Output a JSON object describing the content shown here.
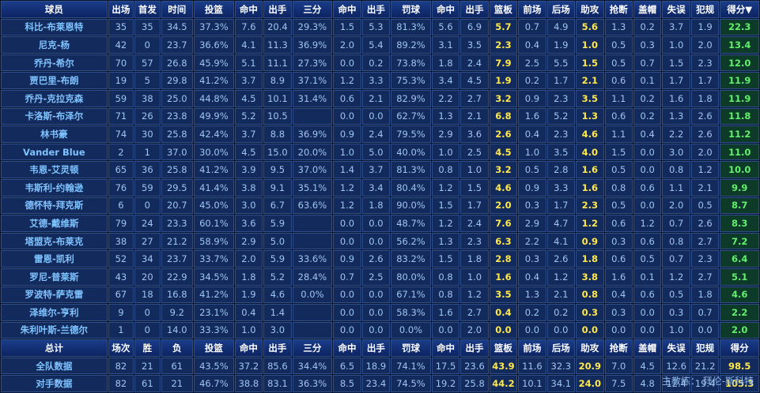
{
  "header": [
    "球员",
    "出场",
    "首发",
    "时间",
    "投篮",
    "命中",
    "出手",
    "三分",
    "命中",
    "出手",
    "罚球",
    "命中",
    "出手",
    "篮板",
    "前场",
    "后场",
    "助攻",
    "抢断",
    "盖帽",
    "失误",
    "犯规",
    "得分▼"
  ],
  "players": [
    [
      "科比-布莱恩特",
      "35",
      "35",
      "34.5",
      "37.3%",
      "7.6",
      "20.4",
      "29.3%",
      "1.5",
      "5.3",
      "81.3%",
      "5.6",
      "6.9",
      "5.7",
      "0.7",
      "4.9",
      "5.6",
      "1.3",
      "0.2",
      "3.7",
      "1.9",
      "22.3"
    ],
    [
      "尼克-杨",
      "42",
      "0",
      "23.7",
      "36.6%",
      "4.1",
      "11.3",
      "36.9%",
      "2.0",
      "5.4",
      "89.2%",
      "3.1",
      "3.5",
      "2.3",
      "0.4",
      "1.9",
      "1.0",
      "0.5",
      "0.3",
      "1.0",
      "2.0",
      "13.4"
    ],
    [
      "乔丹-希尔",
      "70",
      "57",
      "26.8",
      "45.9%",
      "5.1",
      "11.1",
      "27.3%",
      "0.0",
      "0.2",
      "73.8%",
      "1.8",
      "2.4",
      "7.9",
      "2.5",
      "5.5",
      "1.5",
      "0.5",
      "0.7",
      "1.5",
      "2.3",
      "12.0"
    ],
    [
      "贾巴里-布朗",
      "19",
      "5",
      "29.8",
      "41.2%",
      "3.7",
      "8.9",
      "37.1%",
      "1.2",
      "3.3",
      "75.3%",
      "3.4",
      "4.5",
      "1.9",
      "0.2",
      "1.7",
      "2.1",
      "0.6",
      "0.1",
      "1.7",
      "1.7",
      "11.9"
    ],
    [
      "乔丹-克拉克森",
      "59",
      "38",
      "25.0",
      "44.8%",
      "4.5",
      "10.1",
      "31.4%",
      "0.6",
      "2.1",
      "82.9%",
      "2.2",
      "2.7",
      "3.2",
      "0.9",
      "2.3",
      "3.5",
      "1.1",
      "0.2",
      "1.6",
      "1.8",
      "11.9"
    ],
    [
      "卡洛斯-布泽尔",
      "71",
      "26",
      "23.8",
      "49.9%",
      "5.2",
      "10.5",
      "",
      "0.0",
      "0.0",
      "62.7%",
      "1.3",
      "2.1",
      "6.8",
      "1.6",
      "5.2",
      "1.3",
      "0.6",
      "0.2",
      "1.3",
      "2.6",
      "11.8"
    ],
    [
      "林书豪",
      "74",
      "30",
      "25.8",
      "42.4%",
      "3.7",
      "8.8",
      "36.9%",
      "0.9",
      "2.4",
      "79.5%",
      "2.9",
      "3.6",
      "2.6",
      "0.4",
      "2.3",
      "4.6",
      "1.1",
      "0.4",
      "2.2",
      "2.6",
      "11.2"
    ],
    [
      "Vander Blue",
      "2",
      "1",
      "37.0",
      "30.0%",
      "4.5",
      "15.0",
      "20.0%",
      "1.0",
      "5.0",
      "40.0%",
      "1.0",
      "2.5",
      "4.5",
      "1.0",
      "3.5",
      "4.0",
      "1.5",
      "0.0",
      "3.0",
      "2.0",
      "11.0"
    ],
    [
      "韦恩-艾灵顿",
      "65",
      "36",
      "25.8",
      "41.2%",
      "3.9",
      "9.5",
      "37.0%",
      "1.4",
      "3.7",
      "81.3%",
      "0.8",
      "1.0",
      "3.2",
      "0.5",
      "2.8",
      "1.6",
      "0.5",
      "0.0",
      "0.8",
      "1.2",
      "10.0"
    ],
    [
      "韦斯利-约翰逊",
      "76",
      "59",
      "29.5",
      "41.4%",
      "3.8",
      "9.1",
      "35.1%",
      "1.2",
      "3.4",
      "80.4%",
      "1.2",
      "1.5",
      "4.6",
      "0.9",
      "3.3",
      "1.6",
      "0.8",
      "0.6",
      "1.1",
      "2.1",
      "9.9"
    ],
    [
      "德怀特-拜克斯",
      "6",
      "0",
      "20.7",
      "45.0%",
      "3.0",
      "6.7",
      "63.6%",
      "1.2",
      "1.8",
      "90.0%",
      "1.5",
      "1.7",
      "2.0",
      "0.3",
      "1.7",
      "2.3",
      "0.5",
      "0.0",
      "2.0",
      "0.5",
      "8.7"
    ],
    [
      "艾德-戴维斯",
      "79",
      "24",
      "23.3",
      "60.1%",
      "3.6",
      "5.9",
      "",
      "0.0",
      "0.0",
      "48.7%",
      "1.2",
      "2.4",
      "7.6",
      "2.9",
      "4.7",
      "1.2",
      "0.6",
      "1.2",
      "0.7",
      "2.6",
      "8.3"
    ],
    [
      "塔盟克-布莱克",
      "38",
      "27",
      "21.2",
      "58.9%",
      "2.9",
      "5.0",
      "",
      "0.0",
      "0.0",
      "56.2%",
      "1.3",
      "2.3",
      "6.3",
      "2.2",
      "4.1",
      "0.9",
      "0.3",
      "0.6",
      "0.8",
      "2.7",
      "7.2"
    ],
    [
      "雷恩-凯利",
      "52",
      "34",
      "23.7",
      "33.7%",
      "2.0",
      "5.9",
      "33.6%",
      "0.9",
      "2.6",
      "83.2%",
      "1.5",
      "1.8",
      "2.8",
      "0.3",
      "2.6",
      "1.8",
      "0.6",
      "0.5",
      "0.7",
      "2.3",
      "6.4"
    ],
    [
      "罗尼-普莱斯",
      "43",
      "20",
      "22.9",
      "34.5%",
      "1.8",
      "5.2",
      "28.4%",
      "0.7",
      "2.5",
      "80.0%",
      "0.8",
      "1.0",
      "1.6",
      "0.4",
      "1.2",
      "3.8",
      "1.6",
      "0.1",
      "1.2",
      "2.7",
      "5.1"
    ],
    [
      "罗波特-萨克雷",
      "67",
      "18",
      "16.8",
      "41.2%",
      "1.9",
      "4.6",
      "0.0%",
      "0.0",
      "0.0",
      "67.1%",
      "0.8",
      "1.2",
      "3.5",
      "1.3",
      "2.1",
      "0.8",
      "0.4",
      "0.6",
      "0.5",
      "1.8",
      "4.6"
    ],
    [
      "泽维尔-亨利",
      "9",
      "0",
      "9.2",
      "23.1%",
      "0.4",
      "1.4",
      "",
      "0.0",
      "0.0",
      "58.3%",
      "1.6",
      "2.7",
      "0.4",
      "0.2",
      "0.2",
      "0.3",
      "0.3",
      "0.0",
      "0.3",
      "0.7",
      "2.2"
    ],
    [
      "朱利叶斯-兰德尔",
      "1",
      "0",
      "14.0",
      "33.3%",
      "1.0",
      "3.0",
      "",
      "0.0",
      "0.0",
      "0.0%",
      "0.0",
      "2.0",
      "0.0",
      "0.0",
      "0.0",
      "0.0",
      "0.0",
      "0.0",
      "1.0",
      "0.0",
      "2.0"
    ]
  ],
  "summary_header": [
    "总计",
    "场次",
    "胜",
    "负",
    "投篮",
    "命中",
    "出手",
    "三分",
    "命中",
    "出手",
    "罚球",
    "命中",
    "出手",
    "篮板",
    "前场",
    "后场",
    "助攻",
    "抢断",
    "盖帽",
    "失误",
    "犯规",
    "得分"
  ],
  "team_rows": [
    [
      "全队数据",
      "82",
      "21",
      "61",
      "43.5%",
      "37.2",
      "85.6",
      "34.4%",
      "6.5",
      "18.9",
      "74.1%",
      "17.5",
      "23.6",
      "43.9",
      "11.6",
      "32.3",
      "20.9",
      "7.0",
      "4.5",
      "12.6",
      "21.2",
      "98.5"
    ],
    [
      "对手数据",
      "82",
      "61",
      "21",
      "46.7%",
      "38.8",
      "83.1",
      "36.3%",
      "8.5",
      "23.4",
      "74.5%",
      "19.2",
      "25.8",
      "44.2",
      "10.1",
      "34.1",
      "24.0",
      "7.5",
      "4.8",
      "12.4",
      "19.4",
      "105.3"
    ]
  ],
  "coach": {
    "label": "主教练：",
    "name": "拜伦-斯科特"
  }
}
